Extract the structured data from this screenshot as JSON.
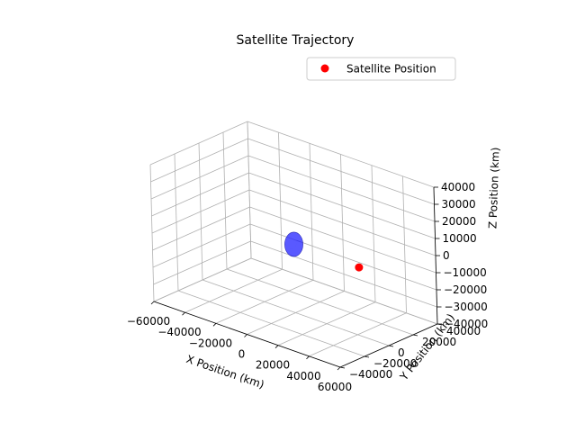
{
  "chart_data": {
    "type": "scatter",
    "projection": "3d",
    "title": "Satellite Trajectory",
    "xlabel": "X Position (km)",
    "ylabel": "Y Position (km)",
    "zlabel": "Z Position (km)",
    "xlim": [
      -60000,
      60000
    ],
    "ylim": [
      -40000,
      40000
    ],
    "zlim": [
      -40000,
      40000
    ],
    "xticks": [
      "−60000",
      "−40000",
      "−20000",
      "0",
      "20000",
      "40000",
      "60000"
    ],
    "yticks": [
      "−40000",
      "−20000",
      "0",
      "20000",
      "40000"
    ],
    "zticks": [
      "−40000",
      "−30000",
      "−20000",
      "−10000",
      "0",
      "10000",
      "20000",
      "30000",
      "40000"
    ],
    "grid": true,
    "legend_position": "top-right",
    "series": [
      {
        "name": "Satellite Position",
        "color": "#ff0000",
        "marker": "circle",
        "points": [
          {
            "x": 42000,
            "y": 0,
            "z": 0
          }
        ]
      }
    ],
    "earth": {
      "center": {
        "x": 0,
        "y": 0,
        "z": 0
      },
      "radius_km": 6371,
      "color": "#0000ff"
    }
  }
}
